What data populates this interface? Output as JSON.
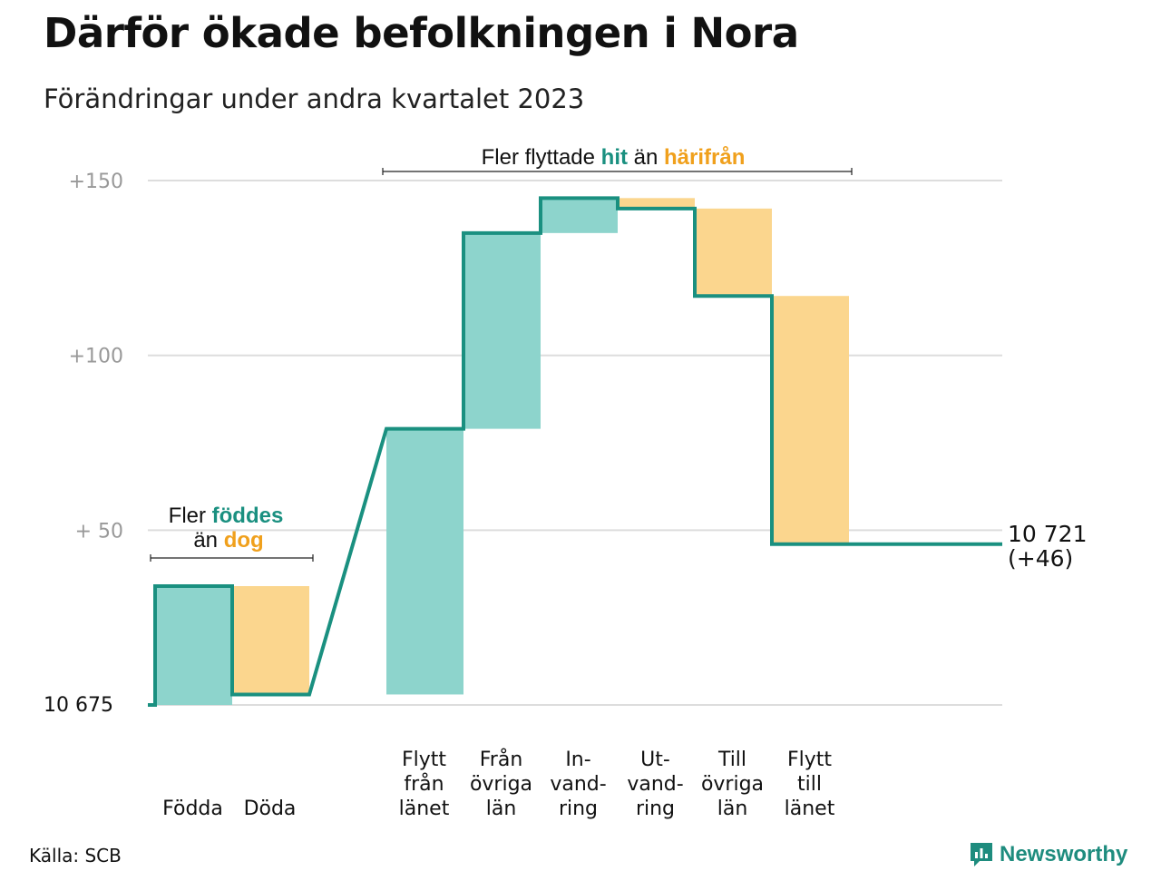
{
  "title": "Därför ökade befolkningen i Nora",
  "subtitle": "Förändringar under andra kvartalet 2023",
  "source": "Källa: SCB",
  "brand": "Newsworthy",
  "colors": {
    "increase_fill": "#8dd4cc",
    "decrease_fill": "#fbd68e",
    "line": "#1a9080",
    "green_text": "#1a9080",
    "orange_text": "#f0a01c",
    "grid": "#dddddd",
    "tick": "#999999"
  },
  "annotations": {
    "births": {
      "line1_pre": "Fler ",
      "line1_hl": "föddes",
      "line2_pre": "än ",
      "line2_hl": "dog"
    },
    "migration": {
      "pre": "Fler flyttade ",
      "hl1": "hit",
      "mid": " än ",
      "hl2": "härifrån"
    }
  },
  "end_label": {
    "line1": "10 721",
    "line2": "(+46)"
  },
  "chart_data": {
    "type": "waterfall",
    "baseline": 10675,
    "baseline_label": "10  675",
    "y_ticks": [
      {
        "value": 50,
        "label": "+  50"
      },
      {
        "value": 100,
        "label": "+100"
      },
      {
        "value": 150,
        "label": "+150"
      }
    ],
    "ylim": [
      0,
      150
    ],
    "steps": [
      {
        "lines": [
          "Födda"
        ],
        "change": 34
      },
      {
        "lines": [
          "Döda"
        ],
        "change": -31
      },
      {
        "lines": [
          "Flytt",
          "från",
          "länet"
        ],
        "change": 76
      },
      {
        "lines": [
          "Från",
          "övriga",
          "län"
        ],
        "change": 56
      },
      {
        "lines": [
          "In-",
          "vand-",
          "ring"
        ],
        "change": 10
      },
      {
        "lines": [
          "Ut-",
          "vand-",
          "ring"
        ],
        "change": -3
      },
      {
        "lines": [
          "Till",
          "övriga",
          "län"
        ],
        "change": -25
      },
      {
        "lines": [
          "Flytt",
          "till",
          "länet"
        ],
        "change": -71
      }
    ],
    "end_total": 10721,
    "end_change": 46
  }
}
